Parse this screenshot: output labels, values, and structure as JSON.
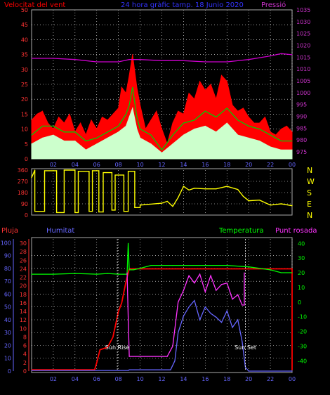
{
  "chart_data": [
    {
      "type": "line",
      "panel": "wind-speed-pressure",
      "title": "24 hora gràfic tamp. 18 Junio 2020",
      "left_axis_label": "Velocitat del vent",
      "right_axis_label": "Pressió",
      "left_ticks": [
        0,
        5,
        10,
        15,
        20,
        25,
        30,
        35,
        40,
        45,
        50
      ],
      "right_ticks": [
        975,
        980,
        985,
        990,
        995,
        1000,
        1005,
        1010,
        1015,
        1020,
        1025,
        1030,
        1035
      ],
      "x_ticks": [
        "02",
        "04",
        "06",
        "08",
        "10",
        "12",
        "14",
        "16",
        "18",
        "20",
        "22",
        "00"
      ],
      "x_range_hours": [
        0,
        24
      ],
      "ylim_left": [
        0,
        50
      ],
      "ylim_right": [
        972,
        1035
      ],
      "grid": true,
      "series": [
        {
          "key": "gust",
          "color": "#ff0000",
          "fill": true,
          "x": [
            0,
            0.5,
            1,
            1.5,
            2,
            2.5,
            3,
            3.5,
            4,
            4.5,
            5,
            5.5,
            6,
            6.5,
            7,
            7.5,
            8,
            8.3,
            8.7,
            9,
            9.3,
            9.7,
            10,
            10.5,
            11,
            11.5,
            12,
            12.5,
            13,
            13.5,
            14,
            14.5,
            15,
            15.5,
            16,
            16.5,
            17,
            17.5,
            18,
            18.5,
            19,
            19.5,
            20,
            20.5,
            21,
            21.5,
            22,
            22.5,
            23,
            23.5,
            24
          ],
          "values": [
            13,
            15,
            16,
            12,
            10,
            14,
            12,
            15,
            9,
            12,
            8,
            13,
            10,
            14,
            13,
            15,
            17,
            24,
            22,
            28,
            35,
            24,
            18,
            10,
            13,
            16,
            10,
            5,
            12,
            16,
            15,
            22,
            20,
            26,
            23,
            25,
            20,
            28,
            26,
            18,
            16,
            17,
            14,
            12,
            12,
            14,
            9,
            8,
            10,
            11,
            9
          ]
        },
        {
          "key": "mean",
          "color": "#00cc00",
          "x": [
            0,
            1,
            2,
            3,
            4,
            5,
            6,
            7,
            8,
            8.7,
            9,
            9.3,
            9.7,
            10,
            11,
            12,
            13,
            14,
            15,
            16,
            17,
            18,
            19,
            20,
            21,
            22,
            23,
            24
          ],
          "values": [
            8,
            11,
            11,
            9,
            9,
            6,
            7,
            9,
            11,
            15,
            18,
            24,
            14,
            10,
            8,
            3,
            8,
            12,
            13,
            16,
            14,
            17,
            13,
            11,
            10,
            8,
            6,
            6
          ]
        },
        {
          "key": "min",
          "color": "#ccffcc",
          "fill": true,
          "x": [
            0,
            1,
            2,
            3,
            4,
            5,
            6,
            7,
            8,
            8.7,
            9,
            9.3,
            9.7,
            10,
            11,
            12,
            13,
            14,
            15,
            16,
            17,
            18,
            19,
            20,
            21,
            22,
            23,
            24
          ],
          "values": [
            5,
            7,
            8,
            6,
            6,
            3,
            5,
            7,
            9,
            11,
            14,
            17,
            10,
            7,
            5,
            2,
            5,
            8,
            10,
            11,
            9,
            12,
            8,
            7,
            6,
            4,
            3,
            3
          ]
        },
        {
          "key": "pressure",
          "color": "#cc00cc",
          "axis": "right",
          "x": [
            0,
            2,
            4,
            6,
            8,
            9,
            10,
            12,
            14,
            16,
            18,
            20,
            22,
            23,
            24
          ],
          "values": [
            1014.5,
            1014.5,
            1014,
            1013,
            1013,
            1014,
            1014,
            1013.5,
            1013.5,
            1013,
            1013,
            1014,
            1015.5,
            1016.5,
            1016
          ]
        }
      ]
    },
    {
      "type": "scatter",
      "panel": "wind-direction",
      "left_ticks": [
        0,
        90,
        180,
        270,
        360
      ],
      "right_labels": [
        "N",
        "W",
        "S",
        "E",
        "N"
      ],
      "ylim": [
        0,
        360
      ],
      "x_range_hours": [
        0,
        24
      ],
      "grid": true,
      "series": [
        {
          "key": "direction",
          "color": "#ffff00",
          "x": [
            0,
            0.3,
            0.3,
            1.2,
            1.2,
            2.3,
            2.3,
            3,
            3,
            4,
            4,
            4.3,
            4.3,
            5.3,
            5.3,
            5.6,
            5.6,
            6.2,
            6.2,
            6.6,
            6.6,
            7.4,
            7.4,
            7.7,
            7.7,
            8.5,
            8.5,
            8.9,
            8.9,
            9.5,
            9.5,
            10,
            10,
            12,
            12.5,
            13,
            13.5,
            14,
            14.5,
            15,
            16,
            17,
            18,
            19,
            19.5,
            20,
            21,
            22,
            23,
            24
          ],
          "values": [
            300,
            360,
            30,
            30,
            355,
            355,
            20,
            20,
            360,
            360,
            20,
            20,
            350,
            350,
            30,
            30,
            355,
            355,
            25,
            25,
            340,
            340,
            40,
            40,
            320,
            320,
            30,
            30,
            350,
            350,
            60,
            60,
            80,
            95,
            110,
            70,
            140,
            230,
            200,
            215,
            210,
            210,
            230,
            205,
            150,
            115,
            120,
            80,
            90,
            75
          ]
        }
      ]
    },
    {
      "type": "line",
      "panel": "rain-humidity-temperature-dewpoint",
      "labels": {
        "rain": "Pluja",
        "humidity": "Humitat",
        "temperature": "Temperatura",
        "dewpoint": "Punt rosada"
      },
      "rain_ticks": [
        0,
        2,
        4,
        6,
        8,
        10,
        12,
        14,
        16,
        18,
        20,
        22,
        24,
        26,
        28,
        30
      ],
      "humidity_ticks": [
        0,
        10,
        20,
        30,
        40,
        50,
        60,
        70,
        80,
        90,
        100
      ],
      "temperature_ticks": [
        -40,
        -30,
        -20,
        -10,
        0,
        10,
        20,
        30,
        40
      ],
      "x_ticks": [
        "02",
        "04",
        "06",
        "08",
        "10",
        "12",
        "14",
        "16",
        "18",
        "20",
        "22",
        "00"
      ],
      "x_range_hours": [
        0,
        24
      ],
      "ylim_rain": [
        0,
        31
      ],
      "ylim_humidity": [
        0,
        103
      ],
      "ylim_temperature": [
        -47,
        43
      ],
      "annotations": [
        {
          "text": "Sun Rise",
          "hour": 7.9
        },
        {
          "text": "Sun Set",
          "hour": 19.7
        }
      ],
      "series": [
        {
          "key": "rain",
          "color": "#ff0000",
          "x": [
            0,
            5.8,
            6,
            6.3,
            7,
            7.5,
            8,
            8.3,
            8.7,
            9,
            9.3,
            24,
            24
          ],
          "values": [
            0.3,
            0.3,
            2,
            5,
            5.6,
            8,
            14,
            16,
            21,
            24,
            24,
            24,
            0.3
          ]
        },
        {
          "key": "temperature",
          "color": "#00ff00",
          "x": [
            0,
            2,
            4,
            6,
            7,
            8,
            8.5,
            8.8,
            8.9,
            9,
            9.4,
            10,
            11,
            12,
            13,
            14,
            16,
            18,
            20,
            22,
            23,
            24
          ],
          "values": [
            19,
            19,
            19.5,
            19,
            19.5,
            19,
            19,
            19,
            40,
            22,
            22,
            23,
            25,
            25,
            25,
            25,
            25,
            25,
            24,
            22,
            20,
            20
          ]
        },
        {
          "key": "humidity",
          "color": "#6666ff",
          "x": [
            0,
            6,
            8,
            8.9,
            9,
            12,
            12.8,
            13.2,
            13.5,
            14,
            14.5,
            15,
            15.5,
            16,
            16.5,
            17,
            17.5,
            18,
            18.5,
            19,
            19.4,
            19.7,
            20,
            24
          ],
          "values": [
            0.5,
            0.5,
            0.5,
            0.5,
            1,
            1,
            1,
            8,
            30,
            43,
            50,
            55,
            40,
            50,
            45,
            42,
            38,
            47,
            34,
            40,
            23,
            3,
            0,
            0
          ]
        },
        {
          "key": "dewpoint",
          "color": "#ff33ff",
          "x": [
            8.8,
            8.9,
            9,
            12.5,
            13,
            13.5,
            14,
            14.5,
            15,
            15.5,
            16,
            16.5,
            17,
            17.5,
            18,
            18.5,
            19,
            19.4,
            19.6,
            19.6
          ],
          "values": [
            20,
            -10,
            -37,
            -37,
            -30,
            0,
            8,
            18,
            13,
            19,
            7,
            18,
            8,
            12,
            13,
            2,
            5,
            -2,
            -2,
            20
          ]
        }
      ]
    }
  ]
}
